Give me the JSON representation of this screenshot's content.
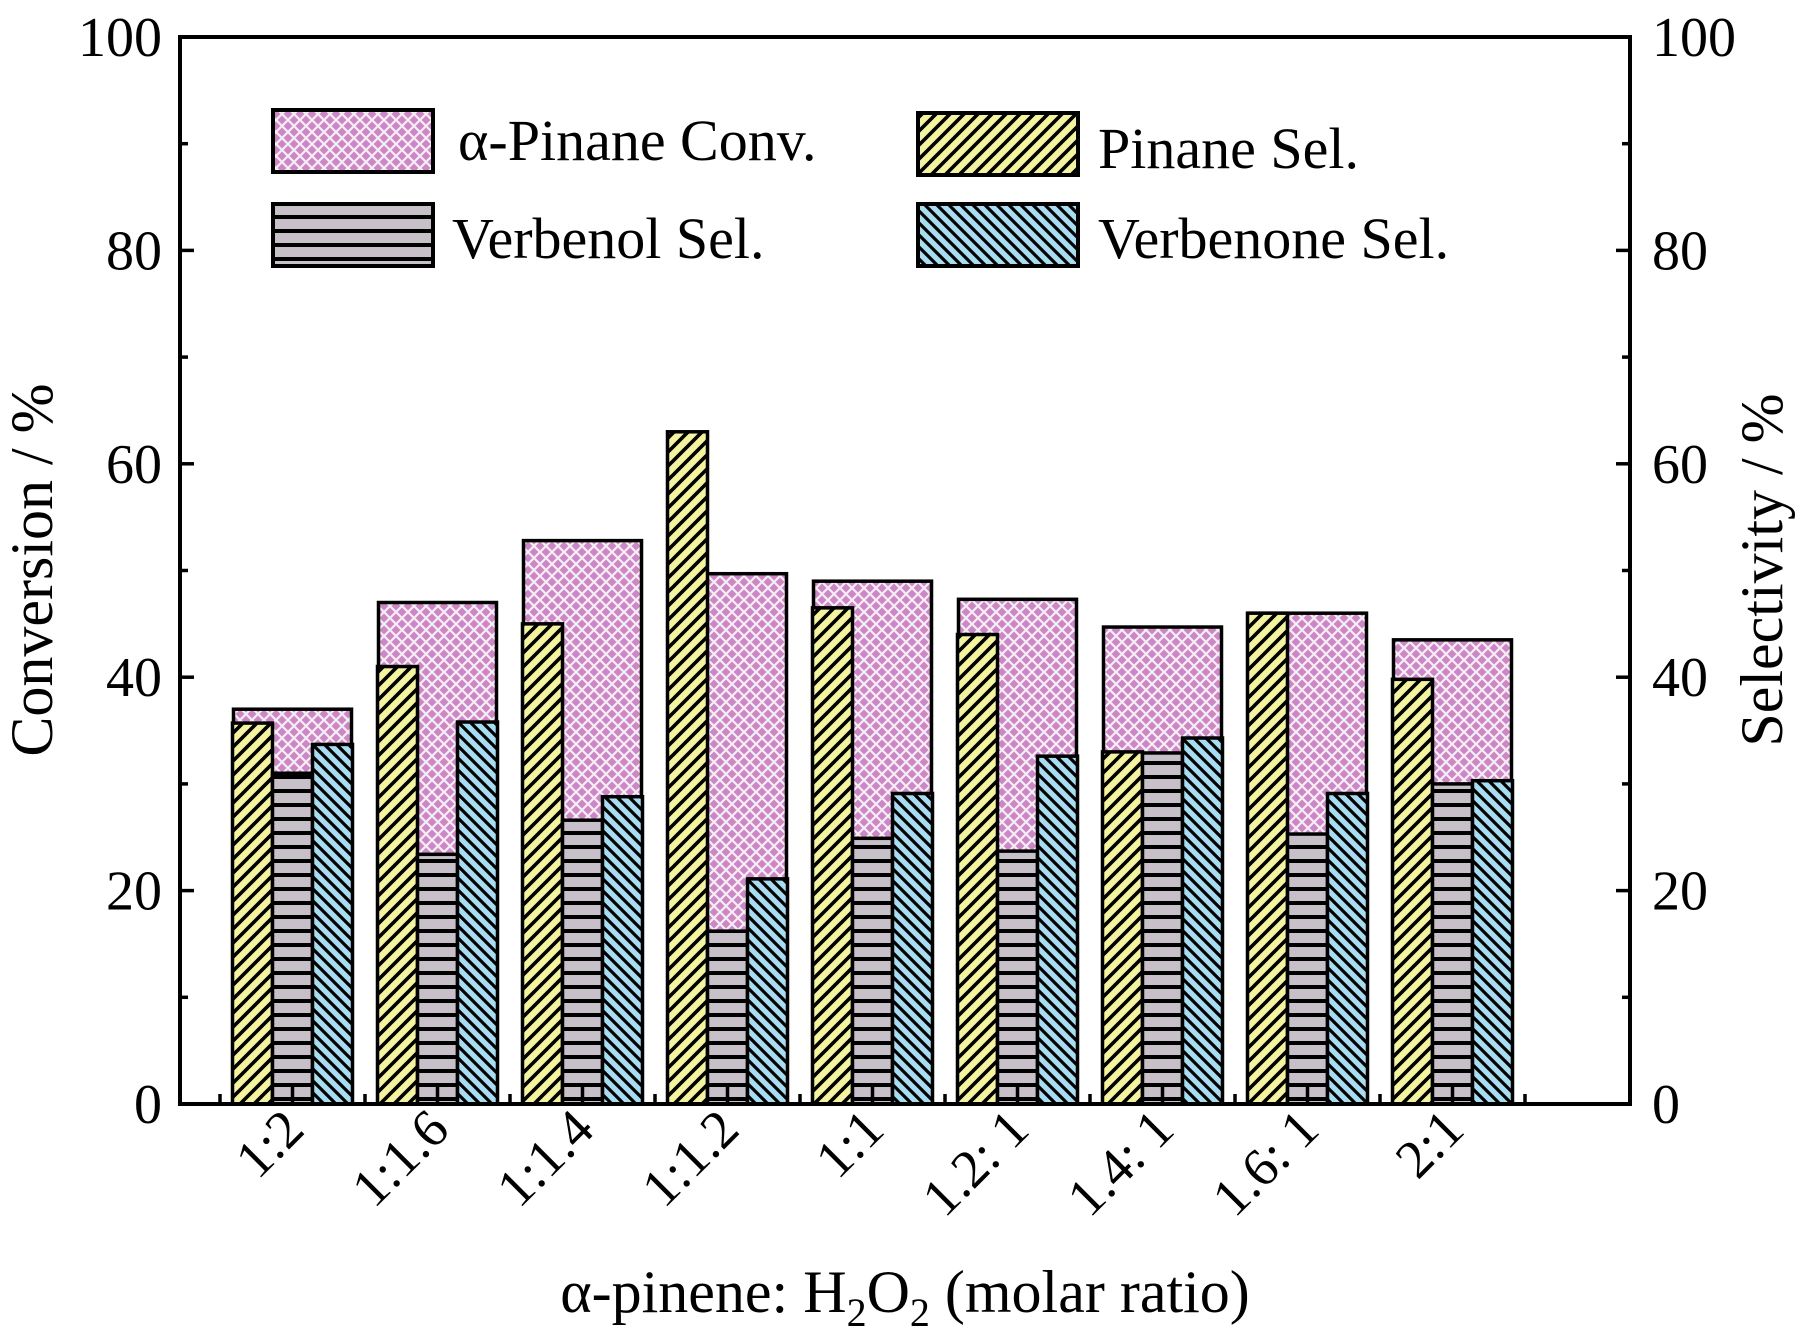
{
  "chart_data": {
    "type": "bar",
    "xlabel_parts": {
      "prefix": "α-pinene: H",
      "sub1": "2",
      "mid": "O",
      "sub2": "2",
      "suffix": " (molar ratio)"
    },
    "ylabel_left": "Conversion / %",
    "ylabel_right": "Selectivity / %",
    "ylim": [
      0,
      100
    ],
    "yticks": [
      "0",
      "20",
      "40",
      "60",
      "80",
      "100"
    ],
    "legend_position": "top-left",
    "categories": [
      "1:2",
      "1:1.6",
      "1:1.4",
      "1:1.2",
      "1:1",
      "1.2: 1",
      "1.4: 1",
      "1.6: 1",
      "2:1"
    ],
    "conversion": {
      "name": "α-Pinane Conv.",
      "color": "#cc88c4",
      "values": [
        37.0,
        47.0,
        52.8,
        49.7,
        49.0,
        47.3,
        44.7,
        46.0,
        43.5
      ]
    },
    "series": [
      {
        "name": "Pinane Sel.",
        "color": "#f3f3a0",
        "pattern": "diagonal-up",
        "values": [
          35.7,
          41.0,
          45.0,
          63.0,
          46.5,
          44.0,
          33.0,
          46.0,
          39.8
        ]
      },
      {
        "name": "Verbenol Sel.",
        "color": "#c8c0c8",
        "pattern": "horizontal",
        "values": [
          31.0,
          23.4,
          26.6,
          16.2,
          24.9,
          23.7,
          32.9,
          25.3,
          30.0
        ]
      },
      {
        "name": "Verbenone Sel.",
        "color": "#a8dcf0",
        "pattern": "diagonal-down",
        "values": [
          33.7,
          35.8,
          28.8,
          21.1,
          29.1,
          32.6,
          34.3,
          29.1,
          30.3
        ]
      }
    ]
  }
}
